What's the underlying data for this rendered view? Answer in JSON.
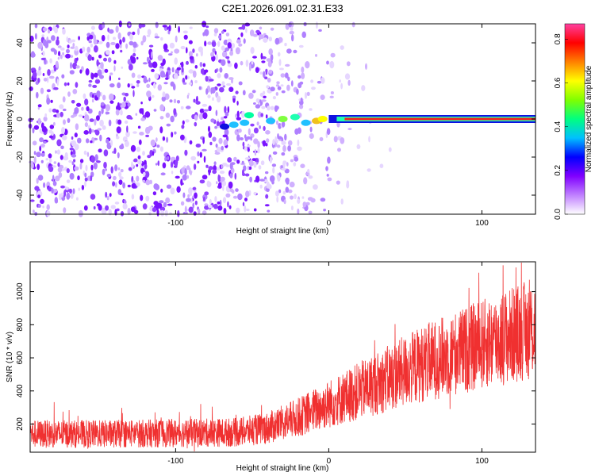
{
  "title": "C2E1.2026.091.02.31.E33",
  "chart_data": [
    {
      "type": "heatmap",
      "xlabel": "Height of straight line (km)",
      "ylabel": "Frequency (Hz)",
      "xlim": [
        -195,
        135
      ],
      "ylim": [
        -50,
        50
      ],
      "xticks": [
        -100,
        0,
        100
      ],
      "yticks": [
        -40,
        -20,
        0,
        20,
        40
      ],
      "colorbar": {
        "label": "Normalized spectral amplitude",
        "range": [
          0,
          0.87
        ],
        "ticks": [
          "0.0",
          "0.2",
          "0.4",
          "0.6",
          "0.8"
        ],
        "colormap": [
          "#ffffff",
          "#c080ff",
          "#8000ff",
          "#0000ff",
          "#00c0ff",
          "#00ff80",
          "#80ff00",
          "#ffff00",
          "#ff8000",
          "#ff0000",
          "#ff40a0"
        ]
      },
      "ridge": {
        "frequency_hz": 0,
        "strong_from_km": 0,
        "strong_to_km": 135,
        "peak_amplitude": 0.85
      }
    },
    {
      "type": "line",
      "xlabel": "Height of straight line (km)",
      "ylabel": "SNR (10 * v/v)",
      "xlim": [
        -195,
        135
      ],
      "ylim": [
        30,
        1180
      ],
      "xticks": [
        -100,
        0,
        100
      ],
      "yticks": [
        200,
        400,
        600,
        800,
        1000
      ],
      "color": "#f03030",
      "trend": {
        "x": [
          -195,
          -150,
          -100,
          -60,
          -40,
          -20,
          0,
          20,
          40,
          60,
          80,
          100,
          120,
          135
        ],
        "y": [
          140,
          140,
          145,
          150,
          175,
          240,
          320,
          400,
          480,
          560,
          620,
          680,
          740,
          780
        ]
      }
    }
  ]
}
